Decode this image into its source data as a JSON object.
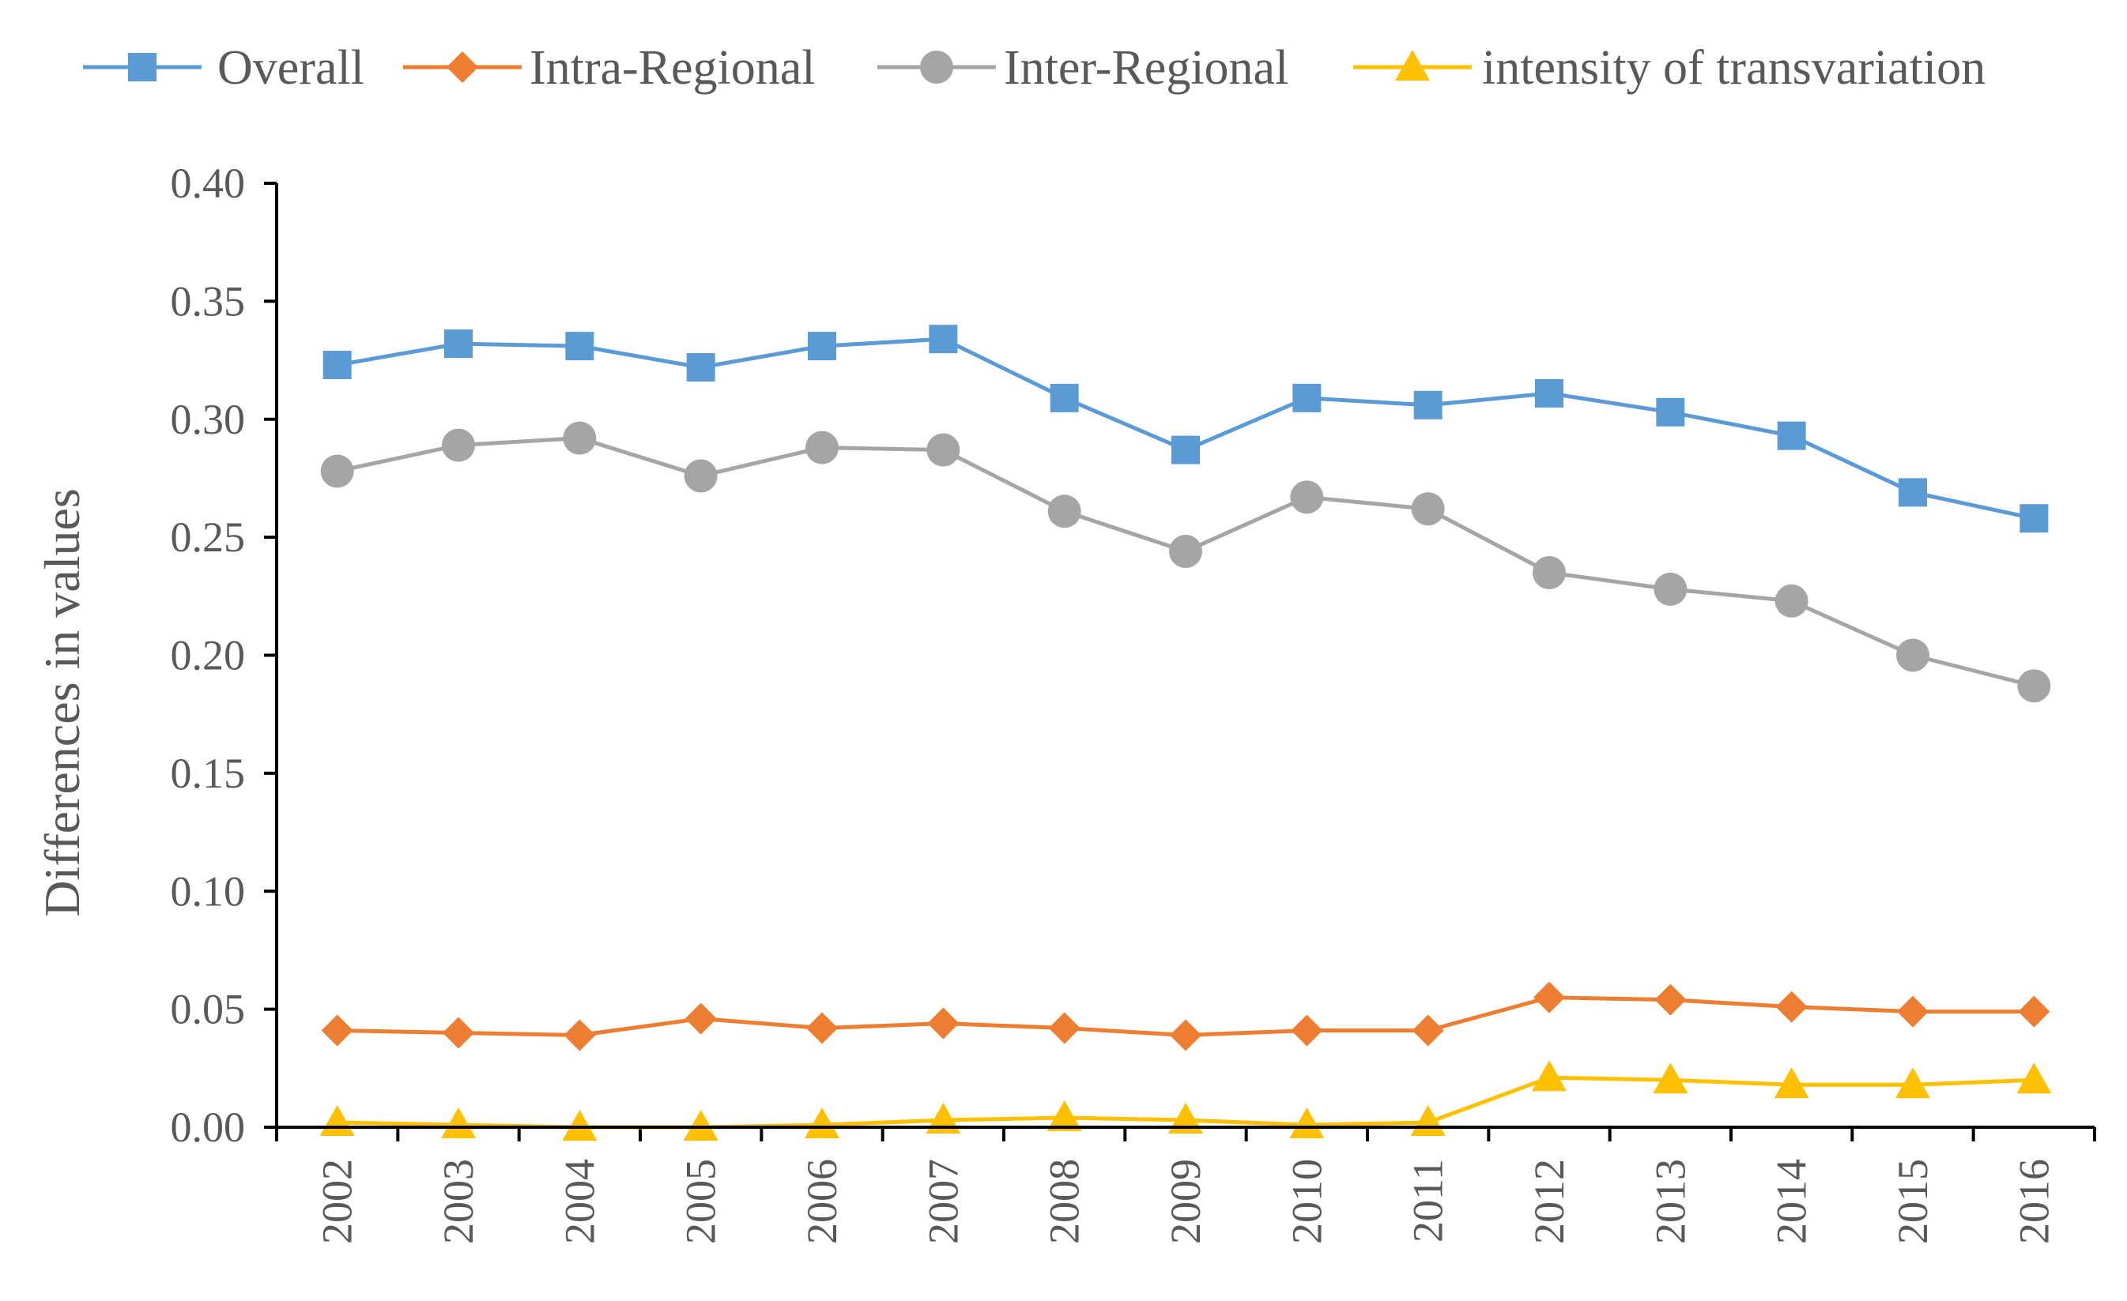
{
  "chart_data": {
    "type": "line",
    "title": "",
    "xlabel": "",
    "ylabel": "Differences in values",
    "ylim": [
      0,
      0.4
    ],
    "yticks": [
      "0.00",
      "0.05",
      "0.10",
      "0.15",
      "0.20",
      "0.25",
      "0.30",
      "0.35",
      "0.40"
    ],
    "categories": [
      "2002",
      "2003",
      "2004",
      "2005",
      "2006",
      "2007",
      "2008",
      "2009",
      "2010",
      "2011",
      "2012",
      "2013",
      "2014",
      "2015",
      "2016"
    ],
    "legend_position": "top",
    "series": [
      {
        "name": "Overall",
        "color": "#5B9BD5",
        "marker": "square",
        "values": [
          0.323,
          0.332,
          0.331,
          0.322,
          0.331,
          0.334,
          0.309,
          0.287,
          0.309,
          0.306,
          0.311,
          0.303,
          0.293,
          0.269,
          0.258
        ]
      },
      {
        "name": "Intra-Regional",
        "color": "#ED7D31",
        "marker": "diamond",
        "values": [
          0.041,
          0.04,
          0.039,
          0.046,
          0.042,
          0.044,
          0.042,
          0.039,
          0.041,
          0.041,
          0.055,
          0.054,
          0.051,
          0.049,
          0.049
        ]
      },
      {
        "name": "Inter-Regional",
        "color": "#A5A5A5",
        "marker": "circle",
        "values": [
          0.278,
          0.289,
          0.292,
          0.276,
          0.288,
          0.287,
          0.261,
          0.244,
          0.267,
          0.262,
          0.235,
          0.228,
          0.223,
          0.2,
          0.187
        ]
      },
      {
        "name": "intensity of transvariation",
        "color": "#FFC000",
        "marker": "triangle",
        "values": [
          0.002,
          0.001,
          0.0,
          0.0,
          0.001,
          0.003,
          0.004,
          0.003,
          0.001,
          0.002,
          0.021,
          0.02,
          0.018,
          0.018,
          0.02
        ]
      }
    ]
  }
}
